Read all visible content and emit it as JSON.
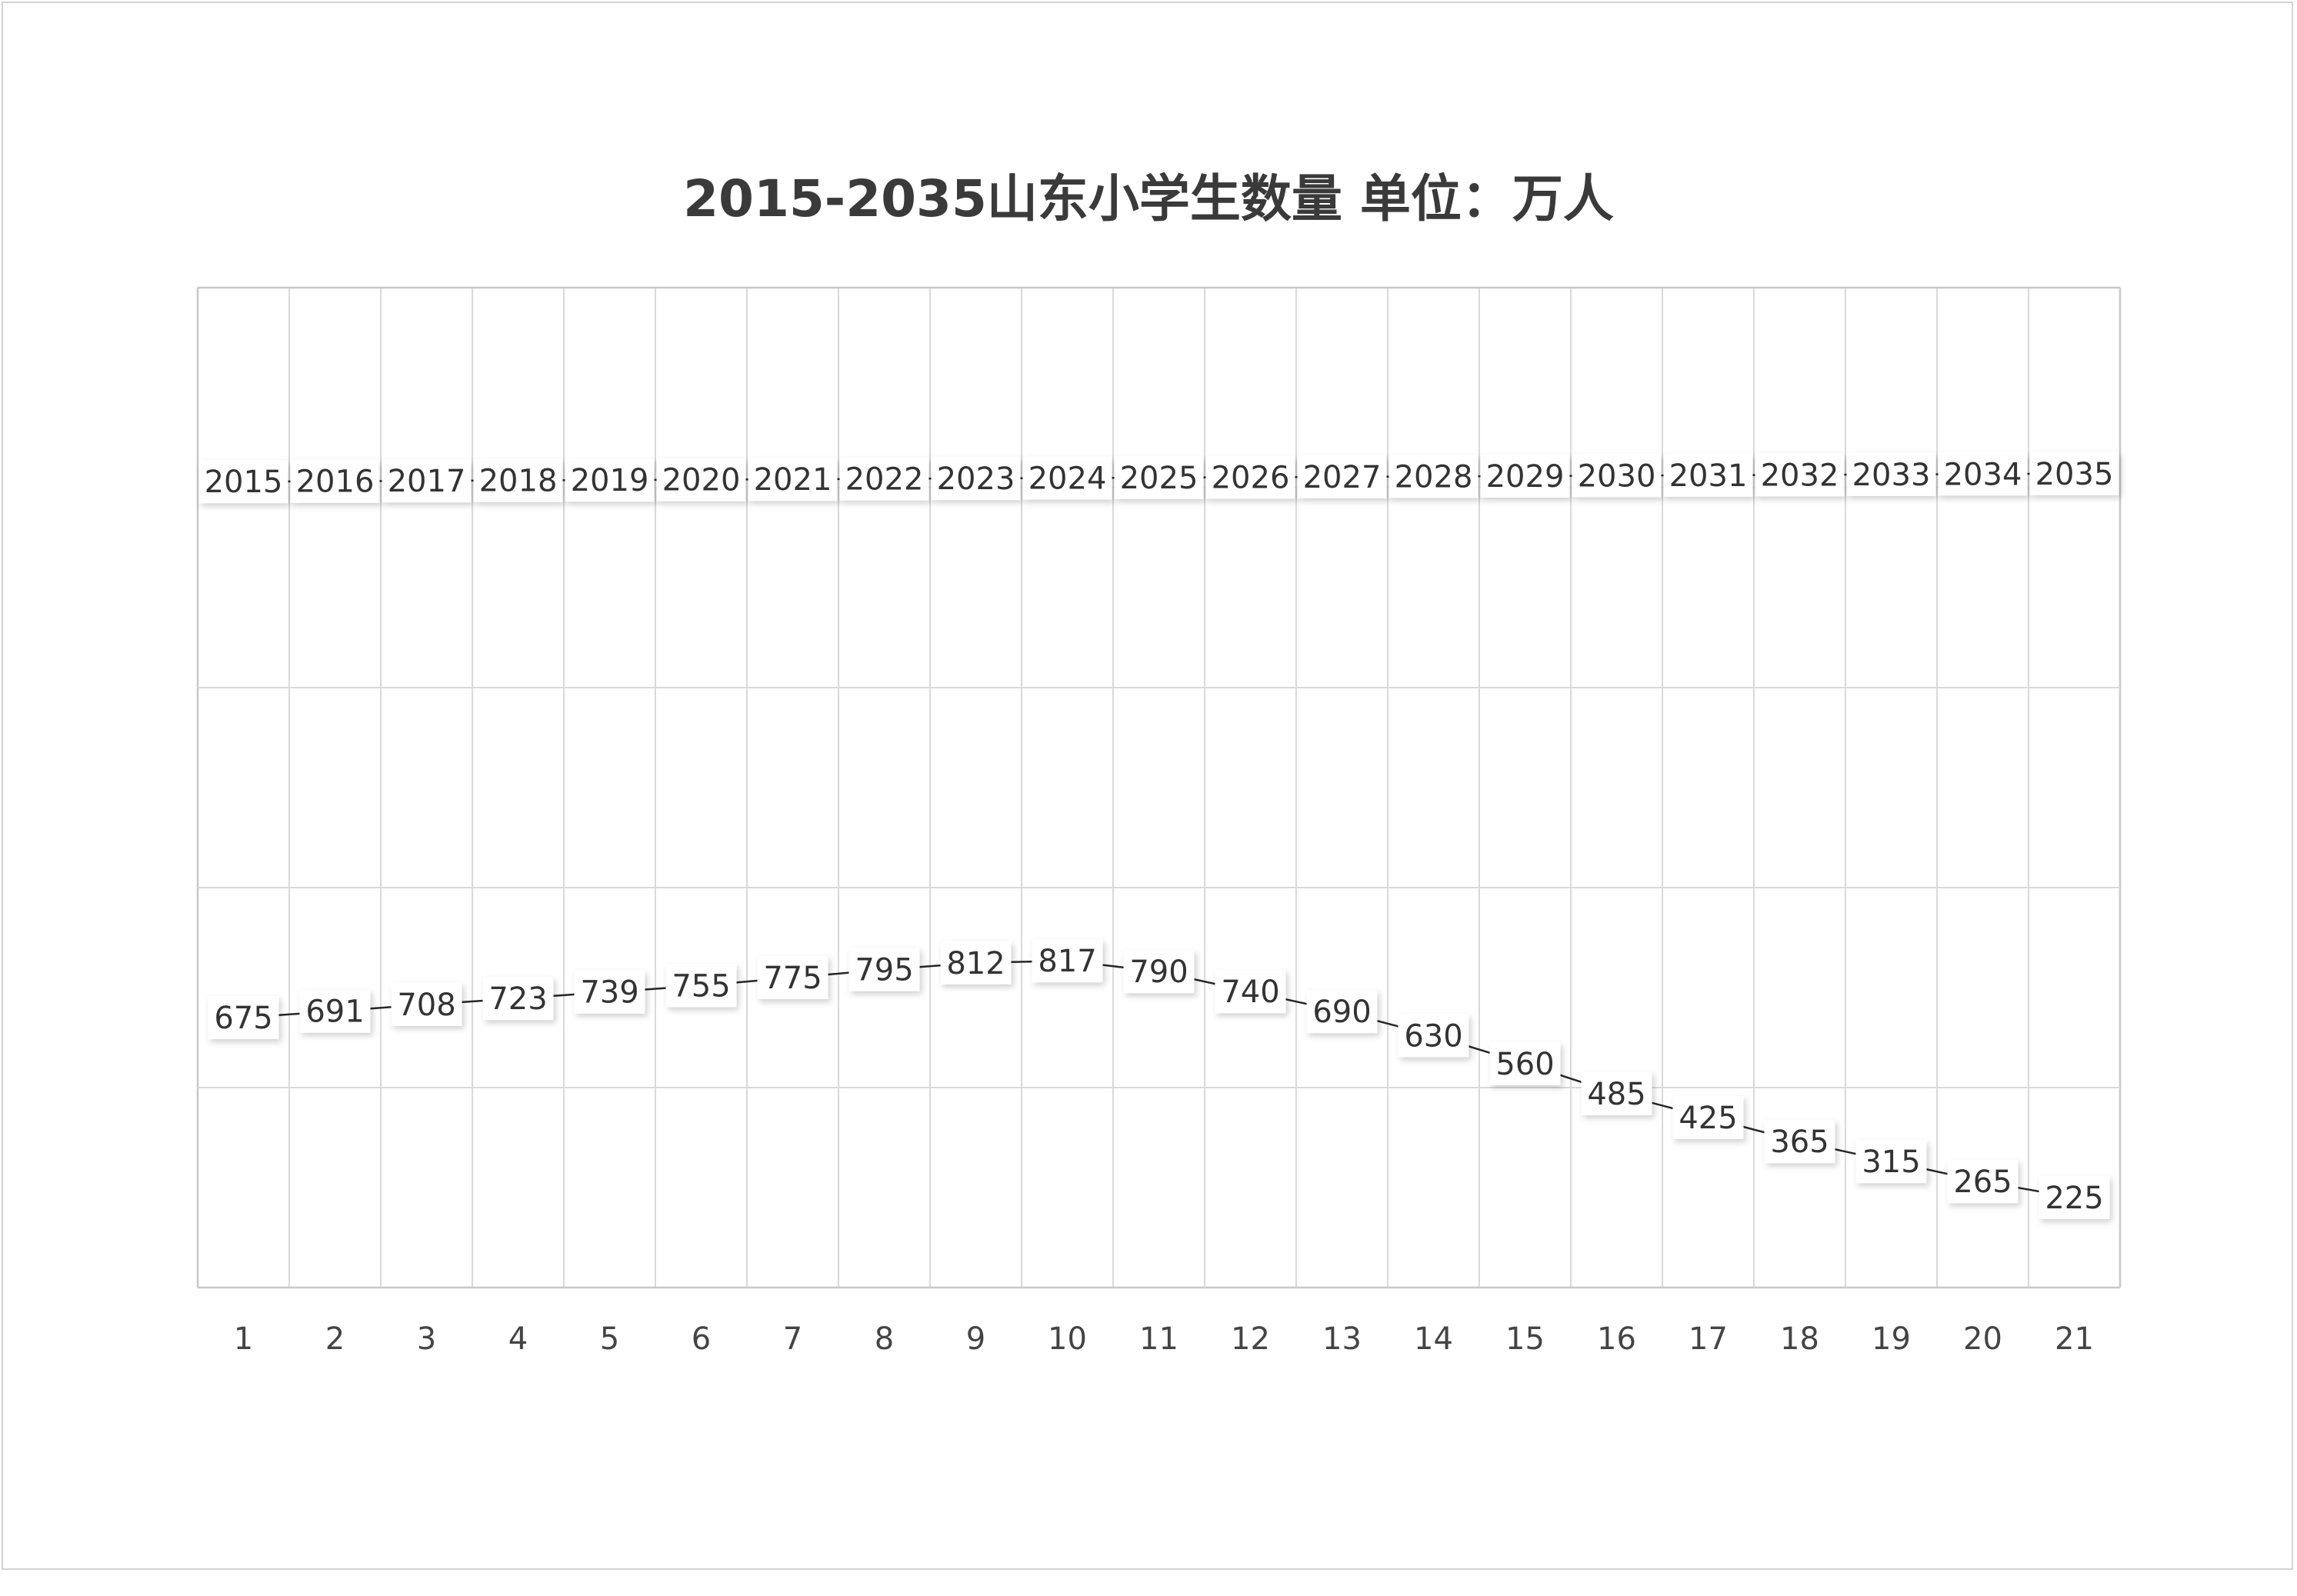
{
  "chart_data": {
    "type": "line",
    "title": "2015-2035山东小学生数量 单位：万人",
    "x": [
      1,
      2,
      3,
      4,
      5,
      6,
      7,
      8,
      9,
      10,
      11,
      12,
      13,
      14,
      15,
      16,
      17,
      18,
      19,
      20,
      21
    ],
    "series": [
      {
        "values": [
          2015,
          2016,
          2017,
          2018,
          2019,
          2020,
          2021,
          2022,
          2023,
          2024,
          2025,
          2026,
          2027,
          2028,
          2029,
          2030,
          2031,
          2032,
          2033,
          2034,
          2035
        ]
      },
      {
        "values": [
          675,
          691,
          708,
          723,
          739,
          755,
          775,
          795,
          812,
          817,
          790,
          740,
          690,
          630,
          560,
          485,
          425,
          365,
          315,
          265,
          225
        ]
      }
    ],
    "xlim": [
      0.5,
      21.5
    ],
    "ylim": [
      0,
      2500
    ],
    "grid": true,
    "legend": "none",
    "colors": {
      "line": "#262626",
      "grid": "#d9d9d9",
      "border": "#c8c8c8",
      "label_bg": "#ffffff"
    }
  }
}
